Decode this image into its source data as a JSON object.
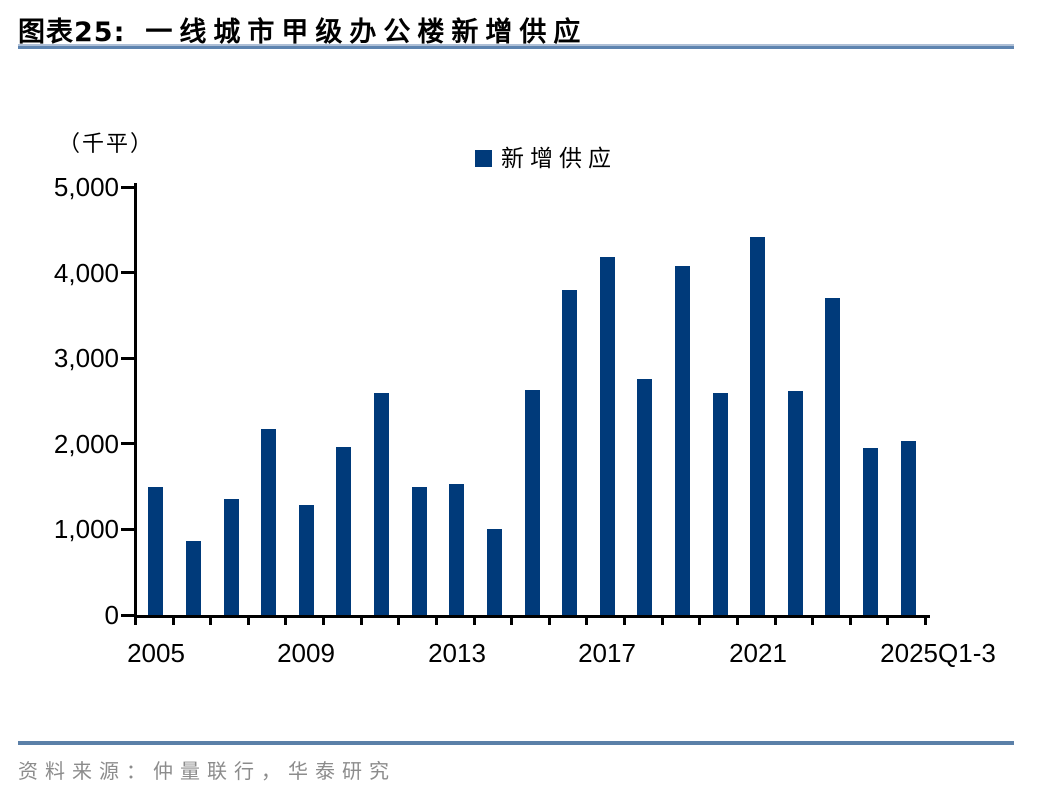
{
  "header": {
    "figure_label": "图表25:",
    "title": "一线城市甲级办公楼新增供应"
  },
  "footer": {
    "source_text": "资料来源：仲量联行，华泰研究"
  },
  "colors": {
    "bar": "#003a7a",
    "title_underline": "#5e84b0",
    "footer_line": "#5b80a8",
    "axis": "#000000",
    "source_text": "#8c8c8c"
  },
  "chart_data": {
    "type": "bar",
    "title": "一线城市甲级办公楼新增供应",
    "unit_label": "（千平）",
    "legend": [
      {
        "label": "新增供应",
        "color": "#003a7a"
      }
    ],
    "legend_position": "top-center",
    "grid": false,
    "categories": [
      "2005",
      "2006",
      "2007",
      "2008",
      "2009",
      "2010",
      "2011",
      "2012",
      "2013",
      "2014",
      "2015",
      "2016",
      "2017",
      "2018",
      "2019",
      "2020",
      "2021",
      "2022",
      "2023",
      "2024",
      "2025Q1-3"
    ],
    "values": [
      1500,
      860,
      1350,
      2170,
      1280,
      1960,
      2590,
      1490,
      1530,
      1000,
      2630,
      3800,
      4180,
      2760,
      4080,
      2590,
      4420,
      2620,
      3700,
      1950,
      2030
    ],
    "ylim": [
      0,
      5000
    ],
    "yticks": [
      0,
      1000,
      2000,
      3000,
      4000,
      5000
    ],
    "ytick_labels": [
      "0",
      "1,000",
      "2,000",
      "3,000",
      "4,000",
      "5,000"
    ],
    "xtick_labels": [
      {
        "label": "2005",
        "index": 0
      },
      {
        "label": "2009",
        "index": 4
      },
      {
        "label": "2013",
        "index": 8
      },
      {
        "label": "2017",
        "index": 12
      },
      {
        "label": "2021",
        "index": 16
      },
      {
        "label": "2025Q1-3",
        "index": 20
      }
    ]
  }
}
